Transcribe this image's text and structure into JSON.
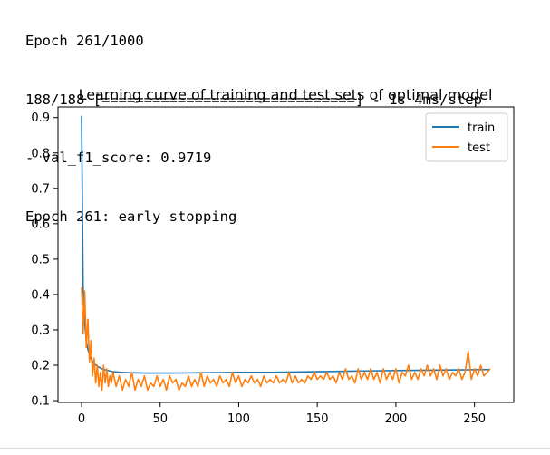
{
  "console": {
    "lines": [
      "Epoch 261/1000",
      "188/188 [==============================] - 1s 4ms/step",
      "- val_f1_score: 0.9719",
      "Epoch 261: early stopping"
    ]
  },
  "chart_data": {
    "type": "line",
    "title": "Learning curve of training and test sets of optimal model",
    "xlabel": "",
    "ylabel": "",
    "xlim": [
      -15,
      275
    ],
    "ylim": [
      0.095,
      0.93
    ],
    "xticks": [
      0,
      50,
      100,
      150,
      200,
      250
    ],
    "yticks": [
      0.1,
      0.2,
      0.3,
      0.4,
      0.5,
      0.6,
      0.7,
      0.8,
      0.9
    ],
    "legend_position": "top-right",
    "grid": false,
    "series": [
      {
        "name": "train",
        "color": "#1f77b4",
        "points": [
          [
            0,
            0.905
          ],
          [
            1,
            0.42
          ],
          [
            2,
            0.32
          ],
          [
            3,
            0.27
          ],
          [
            4,
            0.245
          ],
          [
            5,
            0.23
          ],
          [
            6,
            0.218
          ],
          [
            8,
            0.205
          ],
          [
            10,
            0.197
          ],
          [
            13,
            0.19
          ],
          [
            16,
            0.186
          ],
          [
            20,
            0.182
          ],
          [
            25,
            0.18
          ],
          [
            30,
            0.179
          ],
          [
            40,
            0.178
          ],
          [
            60,
            0.178
          ],
          [
            80,
            0.179
          ],
          [
            100,
            0.18
          ],
          [
            120,
            0.18
          ],
          [
            150,
            0.182
          ],
          [
            180,
            0.184
          ],
          [
            200,
            0.185
          ],
          [
            220,
            0.186
          ],
          [
            240,
            0.187
          ],
          [
            260,
            0.188
          ]
        ]
      },
      {
        "name": "test",
        "color": "#ff7f0e",
        "points": [
          [
            0,
            0.42
          ],
          [
            1,
            0.29
          ],
          [
            2,
            0.41
          ],
          [
            3,
            0.25
          ],
          [
            4,
            0.33
          ],
          [
            5,
            0.21
          ],
          [
            6,
            0.27
          ],
          [
            7,
            0.17
          ],
          [
            8,
            0.22
          ],
          [
            9,
            0.15
          ],
          [
            10,
            0.2
          ],
          [
            11,
            0.14
          ],
          [
            12,
            0.18
          ],
          [
            13,
            0.13
          ],
          [
            14,
            0.2
          ],
          [
            15,
            0.15
          ],
          [
            16,
            0.19
          ],
          [
            17,
            0.14
          ],
          [
            18,
            0.17
          ],
          [
            19,
            0.15
          ],
          [
            20,
            0.18
          ],
          [
            22,
            0.14
          ],
          [
            24,
            0.17
          ],
          [
            26,
            0.13
          ],
          [
            28,
            0.16
          ],
          [
            30,
            0.14
          ],
          [
            32,
            0.18
          ],
          [
            34,
            0.13
          ],
          [
            36,
            0.16
          ],
          [
            38,
            0.14
          ],
          [
            40,
            0.17
          ],
          [
            42,
            0.13
          ],
          [
            44,
            0.15
          ],
          [
            46,
            0.14
          ],
          [
            48,
            0.17
          ],
          [
            50,
            0.14
          ],
          [
            52,
            0.16
          ],
          [
            54,
            0.13
          ],
          [
            56,
            0.17
          ],
          [
            58,
            0.15
          ],
          [
            60,
            0.16
          ],
          [
            62,
            0.13
          ],
          [
            64,
            0.15
          ],
          [
            66,
            0.14
          ],
          [
            68,
            0.17
          ],
          [
            70,
            0.14
          ],
          [
            72,
            0.16
          ],
          [
            74,
            0.14
          ],
          [
            76,
            0.18
          ],
          [
            78,
            0.14
          ],
          [
            80,
            0.17
          ],
          [
            82,
            0.15
          ],
          [
            84,
            0.16
          ],
          [
            86,
            0.14
          ],
          [
            88,
            0.17
          ],
          [
            90,
            0.15
          ],
          [
            92,
            0.16
          ],
          [
            94,
            0.14
          ],
          [
            96,
            0.18
          ],
          [
            98,
            0.15
          ],
          [
            100,
            0.17
          ],
          [
            102,
            0.14
          ],
          [
            104,
            0.16
          ],
          [
            106,
            0.15
          ],
          [
            108,
            0.17
          ],
          [
            110,
            0.15
          ],
          [
            112,
            0.16
          ],
          [
            114,
            0.14
          ],
          [
            116,
            0.17
          ],
          [
            118,
            0.15
          ],
          [
            120,
            0.16
          ],
          [
            122,
            0.15
          ],
          [
            124,
            0.17
          ],
          [
            126,
            0.15
          ],
          [
            128,
            0.16
          ],
          [
            130,
            0.15
          ],
          [
            132,
            0.18
          ],
          [
            134,
            0.15
          ],
          [
            136,
            0.17
          ],
          [
            138,
            0.15
          ],
          [
            140,
            0.16
          ],
          [
            142,
            0.15
          ],
          [
            144,
            0.17
          ],
          [
            146,
            0.16
          ],
          [
            148,
            0.18
          ],
          [
            150,
            0.16
          ],
          [
            152,
            0.17
          ],
          [
            154,
            0.16
          ],
          [
            156,
            0.18
          ],
          [
            158,
            0.16
          ],
          [
            160,
            0.17
          ],
          [
            162,
            0.15
          ],
          [
            164,
            0.18
          ],
          [
            166,
            0.16
          ],
          [
            168,
            0.19
          ],
          [
            170,
            0.16
          ],
          [
            172,
            0.17
          ],
          [
            174,
            0.15
          ],
          [
            176,
            0.19
          ],
          [
            178,
            0.16
          ],
          [
            180,
            0.18
          ],
          [
            182,
            0.16
          ],
          [
            184,
            0.19
          ],
          [
            186,
            0.16
          ],
          [
            188,
            0.18
          ],
          [
            190,
            0.15
          ],
          [
            192,
            0.19
          ],
          [
            194,
            0.16
          ],
          [
            196,
            0.18
          ],
          [
            198,
            0.16
          ],
          [
            200,
            0.19
          ],
          [
            202,
            0.15
          ],
          [
            204,
            0.18
          ],
          [
            206,
            0.17
          ],
          [
            208,
            0.2
          ],
          [
            210,
            0.16
          ],
          [
            212,
            0.18
          ],
          [
            214,
            0.16
          ],
          [
            216,
            0.19
          ],
          [
            218,
            0.17
          ],
          [
            220,
            0.2
          ],
          [
            222,
            0.17
          ],
          [
            224,
            0.19
          ],
          [
            226,
            0.16
          ],
          [
            228,
            0.2
          ],
          [
            230,
            0.17
          ],
          [
            232,
            0.19
          ],
          [
            234,
            0.16
          ],
          [
            236,
            0.18
          ],
          [
            238,
            0.17
          ],
          [
            240,
            0.19
          ],
          [
            242,
            0.16
          ],
          [
            244,
            0.18
          ],
          [
            246,
            0.24
          ],
          [
            248,
            0.16
          ],
          [
            250,
            0.19
          ],
          [
            252,
            0.17
          ],
          [
            254,
            0.2
          ],
          [
            256,
            0.17
          ],
          [
            258,
            0.18
          ],
          [
            260,
            0.19
          ]
        ]
      }
    ]
  }
}
